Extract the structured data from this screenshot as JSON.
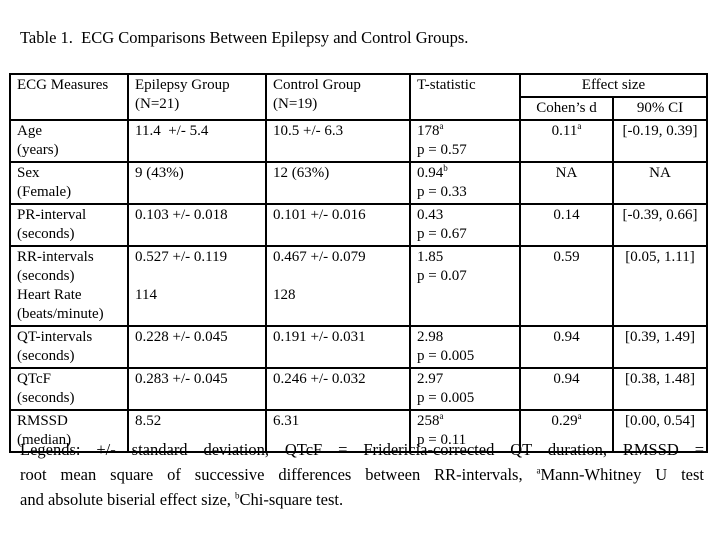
{
  "title": "Table 1.  ECG Comparisons Between Epilepsy and Control Groups.",
  "table": {
    "headers": {
      "measures": "ECG Measures",
      "epilepsy": [
        "Epilepsy Group",
        "(N=21)"
      ],
      "control": [
        "Control Group",
        "(N=19)"
      ],
      "tstat": "T-statistic",
      "effect_size": "Effect size",
      "cohens_d": "Cohen’s d",
      "ci": "90% CI"
    },
    "rows": [
      {
        "measure": [
          "Age",
          "(years)"
        ],
        "epilepsy": [
          "11.4  +/- 5.4"
        ],
        "control": [
          "10.5 +/- 6.3"
        ],
        "t_value": "178",
        "t_sup": "a",
        "t_p": "p = 0.57",
        "d_value": "0.11",
        "d_sup": "a",
        "ci": "[-0.19, 0.39]"
      },
      {
        "measure": [
          "Sex",
          "(Female)"
        ],
        "epilepsy": [
          "9 (43%)"
        ],
        "control": [
          "12 (63%)"
        ],
        "t_value": "0.94",
        "t_sup": "b",
        "t_p": "p = 0.33",
        "d_value": "NA",
        "d_sup": "",
        "ci": "NA"
      },
      {
        "measure": [
          "PR-interval",
          "(seconds)"
        ],
        "epilepsy": [
          "0.103 +/- 0.018"
        ],
        "control": [
          "0.101 +/- 0.016"
        ],
        "t_value": "0.43",
        "t_sup": "",
        "t_p": "p = 0.67",
        "d_value": "0.14",
        "d_sup": "",
        "ci": "[-0.39, 0.66]"
      },
      {
        "measure": [
          "RR-intervals",
          "(seconds)",
          "Heart Rate",
          "(beats/minute)"
        ],
        "epilepsy": [
          "0.527 +/- 0.119",
          "",
          "114"
        ],
        "control": [
          "0.467 +/- 0.079",
          "",
          "128"
        ],
        "t_value": "1.85",
        "t_sup": "",
        "t_p": "p = 0.07",
        "d_value": "0.59",
        "d_sup": "",
        "ci": "[0.05, 1.11]"
      },
      {
        "measure": [
          "QT-intervals",
          "(seconds)"
        ],
        "epilepsy": [
          "0.228 +/- 0.045"
        ],
        "control": [
          "0.191 +/- 0.031"
        ],
        "t_value": "2.98",
        "t_sup": "",
        "t_p": "p = 0.005",
        "d_value": "0.94",
        "d_sup": "",
        "ci": "[0.39, 1.49]"
      },
      {
        "measure": [
          "QTcF",
          "(seconds)"
        ],
        "epilepsy": [
          "0.283 +/- 0.045"
        ],
        "control": [
          "0.246 +/- 0.032"
        ],
        "t_value": "2.97",
        "t_sup": "",
        "t_p": "p = 0.005",
        "d_value": "0.94",
        "d_sup": "",
        "ci": "[0.38, 1.48]"
      },
      {
        "measure": [
          "RMSSD",
          "(median)"
        ],
        "epilepsy": [
          "8.52"
        ],
        "control": [
          "6.31"
        ],
        "t_value": "258",
        "t_sup": "a",
        "t_p": "p = 0.11",
        "d_value": "0.29",
        "d_sup": "a",
        "ci": "[0.00, 0.54]"
      }
    ]
  },
  "legend": {
    "lines": [
      {
        "pre": "Legends:  +/- standard deviation,  QTcF = Fridericia-corrected QT duration, RMSSD =",
        "sup": "",
        "post": ""
      },
      {
        "pre": "root mean square of successive differences between RR-intervals, ",
        "sup": "a",
        "post": "Mann-Whitney U test"
      },
      {
        "pre": "and absolute biserial effect size, ",
        "sup": "b",
        "post": "Chi-square test."
      }
    ]
  }
}
